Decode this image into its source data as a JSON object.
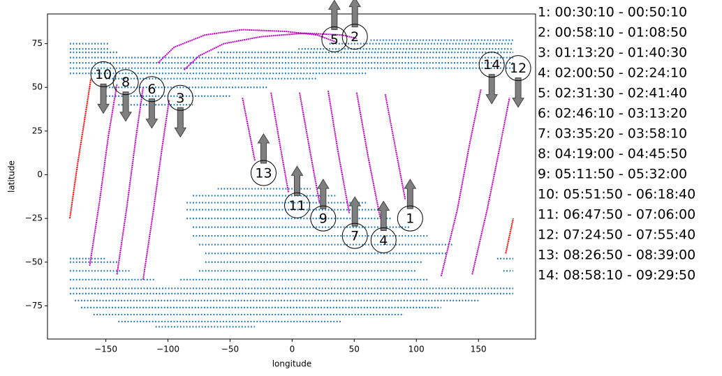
{
  "chart_data": {
    "type": "scatter",
    "xlabel": "longitude",
    "ylabel": "latitude",
    "xlim": [
      -197,
      196
    ],
    "ylim": [
      -94,
      92
    ],
    "xticks": [
      {
        "value": -150,
        "label": "−150"
      },
      {
        "value": -100,
        "label": "−100"
      },
      {
        "value": -50,
        "label": "−50"
      },
      0,
      50,
      100,
      150
    ],
    "yticks": [
      {
        "value": -75,
        "label": "−75"
      },
      {
        "value": -50,
        "label": "−50"
      },
      {
        "value": -25,
        "label": "−25"
      },
      0,
      25,
      50,
      75
    ],
    "coverage": {
      "color": "#1f77b4",
      "rows": [
        {
          "lat": 77,
          "lon": [
            63,
            178
          ]
        },
        {
          "lat": 75,
          "lon": [
            -179,
            -148
          ]
        },
        {
          "lat": 75,
          "lon": [
            30,
            178
          ]
        },
        {
          "lat": 72,
          "lon": [
            -179,
            -148
          ]
        },
        {
          "lat": 72,
          "lon": [
            5,
            178
          ]
        },
        {
          "lat": 70,
          "lon": [
            -179,
            -140
          ]
        },
        {
          "lat": 70,
          "lon": [
            -60,
            178
          ]
        },
        {
          "lat": 67,
          "lon": [
            -179,
            178
          ]
        },
        {
          "lat": 64,
          "lon": [
            -179,
            178
          ]
        },
        {
          "lat": 61,
          "lon": [
            -179,
            178
          ]
        },
        {
          "lat": 58,
          "lon": [
            -179,
            60
          ]
        },
        {
          "lat": 55,
          "lon": [
            -150,
            20
          ]
        },
        {
          "lat": 50,
          "lon": [
            -150,
            -20
          ]
        },
        {
          "lat": 45,
          "lon": [
            -150,
            -50
          ]
        },
        {
          "lat": 40,
          "lon": [
            -140,
            -80
          ]
        },
        {
          "lat": -8,
          "lon": [
            -60,
            15
          ]
        },
        {
          "lat": -12,
          "lon": [
            -80,
            35
          ]
        },
        {
          "lat": -16,
          "lon": [
            -85,
            60
          ]
        },
        {
          "lat": -20,
          "lon": [
            -85,
            75
          ]
        },
        {
          "lat": -25,
          "lon": [
            -85,
            80
          ]
        },
        {
          "lat": -30,
          "lon": [
            -80,
            95
          ]
        },
        {
          "lat": -35,
          "lon": [
            -80,
            110
          ]
        },
        {
          "lat": -40,
          "lon": [
            -75,
            130
          ]
        },
        {
          "lat": -45,
          "lon": [
            -70,
            125
          ]
        },
        {
          "lat": -48,
          "lon": [
            -179,
            -150
          ]
        },
        {
          "lat": -48,
          "lon": [
            165,
            178
          ]
        },
        {
          "lat": -50,
          "lon": [
            -179,
            -140
          ]
        },
        {
          "lat": -50,
          "lon": [
            -70,
            105
          ]
        },
        {
          "lat": -55,
          "lon": [
            -179,
            -130
          ]
        },
        {
          "lat": -55,
          "lon": [
            -75,
            100
          ]
        },
        {
          "lat": -55,
          "lon": [
            170,
            178
          ]
        },
        {
          "lat": -60,
          "lon": [
            -179,
            -110
          ]
        },
        {
          "lat": -60,
          "lon": [
            -90,
            110
          ]
        },
        {
          "lat": -65,
          "lon": [
            -179,
            178
          ]
        },
        {
          "lat": -68,
          "lon": [
            -179,
            178
          ]
        },
        {
          "lat": -72,
          "lon": [
            -175,
            150
          ]
        },
        {
          "lat": -76,
          "lon": [
            -170,
            120
          ]
        },
        {
          "lat": -80,
          "lon": [
            -160,
            90
          ]
        },
        {
          "lat": -84,
          "lon": [
            -140,
            40
          ]
        },
        {
          "lat": -87,
          "lon": [
            -110,
            -30
          ]
        }
      ]
    },
    "tracks": [
      {
        "color": "#ff0000",
        "x": [
          -179,
          -173,
          -167,
          -162
        ],
        "y": [
          -25,
          5,
          32,
          55
        ]
      },
      {
        "color": "#c000c0",
        "x": [
          -163,
          -155,
          -148,
          -141
        ],
        "y": [
          -52,
          -15,
          22,
          52
        ]
      },
      {
        "color": "#c000c0",
        "x": [
          -141,
          -133,
          -126,
          -120
        ],
        "y": [
          -57,
          -18,
          20,
          50
        ]
      },
      {
        "color": "#c000c0",
        "x": [
          -120,
          -112,
          -105,
          -99
        ],
        "y": [
          -60,
          -22,
          14,
          43
        ]
      },
      {
        "color": "#c000c0",
        "x": [
          -108,
          -95,
          -70,
          -40,
          -5,
          20,
          35
        ],
        "y": [
          64,
          73,
          80,
          83,
          82,
          80,
          76
        ]
      },
      {
        "color": "#c000c0",
        "x": [
          -87,
          -75,
          -55,
          -25,
          10,
          40,
          52
        ],
        "y": [
          60,
          68,
          75,
          79,
          81,
          80,
          78
        ]
      },
      {
        "color": "#c000c0",
        "x": [
          -40,
          -35,
          -30
        ],
        "y": [
          44,
          26,
          8
        ]
      },
      {
        "color": "#c000c0",
        "x": [
          -17,
          -10,
          -3
        ],
        "y": [
          47,
          18,
          -10
        ]
      },
      {
        "color": "#c000c0",
        "x": [
          6,
          14,
          22
        ],
        "y": [
          47,
          15,
          -16
        ]
      },
      {
        "color": "#c000c0",
        "x": [
          29,
          37,
          46
        ],
        "y": [
          48,
          13,
          -22
        ]
      },
      {
        "color": "#c000c0",
        "x": [
          52,
          61,
          71
        ],
        "y": [
          47,
          11,
          -25
        ]
      },
      {
        "color": "#c000c0",
        "x": [
          75,
          83,
          91
        ],
        "y": [
          46,
          16,
          -14
        ]
      },
      {
        "color": "#c000c0",
        "x": [
          120,
          133,
          143,
          152
        ],
        "y": [
          -58,
          -20,
          18,
          49
        ]
      },
      {
        "color": "#c000c0",
        "x": [
          145,
          157,
          167,
          175
        ],
        "y": [
          -57,
          -20,
          15,
          44
        ]
      },
      {
        "color": "#ff0000",
        "x": [
          172,
          175,
          178
        ],
        "y": [
          -45,
          -35,
          -25
        ]
      }
    ],
    "annotations": [
      {
        "label": "10",
        "x": -152,
        "y": 57.5,
        "arrow": "down"
      },
      {
        "label": "8",
        "x": -134,
        "y": 53,
        "arrow": "down"
      },
      {
        "label": "6",
        "x": -113,
        "y": 49,
        "arrow": "down"
      },
      {
        "label": "3",
        "x": -90,
        "y": 44,
        "arrow": "down"
      },
      {
        "label": "5",
        "x": 34,
        "y": 77.5,
        "arrow": "up"
      },
      {
        "label": "2",
        "x": 50.5,
        "y": 79,
        "arrow": "up"
      },
      {
        "label": "14",
        "x": 160.7,
        "y": 63,
        "arrow": "down"
      },
      {
        "label": "12",
        "x": 182,
        "y": 61,
        "arrow": "down"
      },
      {
        "label": "13",
        "x": -23,
        "y": 1,
        "arrow": "up"
      },
      {
        "label": "11",
        "x": 4,
        "y": -17.5,
        "arrow": "up"
      },
      {
        "label": "9",
        "x": 25,
        "y": -25,
        "arrow": "up"
      },
      {
        "label": "7",
        "x": 50.5,
        "y": -35,
        "arrow": "up"
      },
      {
        "label": "4",
        "x": 73.6,
        "y": -37.5,
        "arrow": "up"
      },
      {
        "label": "1",
        "x": 95,
        "y": -25,
        "arrow": "up"
      }
    ],
    "legend_lines": [
      "1:  00:30:10 - 00:50:10",
      "2:  00:58:10 - 01:08:50",
      "3:  01:13:20 - 01:40:30",
      "4:  02:00:50 - 02:24:10",
      "5:  02:31:30 - 02:41:40",
      "6:  02:46:10 - 03:13:20",
      "7:  03:35:20 - 03:58:10",
      "8:  04:19:00 - 04:45:50",
      "9:  05:11:50 - 05:32:00",
      "10:  05:51:50 - 06:18:40",
      "11:  06:47:50 - 07:06:00",
      "12:  07:24:50 - 07:55:40",
      "13:  08:26:50 - 08:39:00",
      "14:  08:58:10 - 09:29:50"
    ]
  }
}
